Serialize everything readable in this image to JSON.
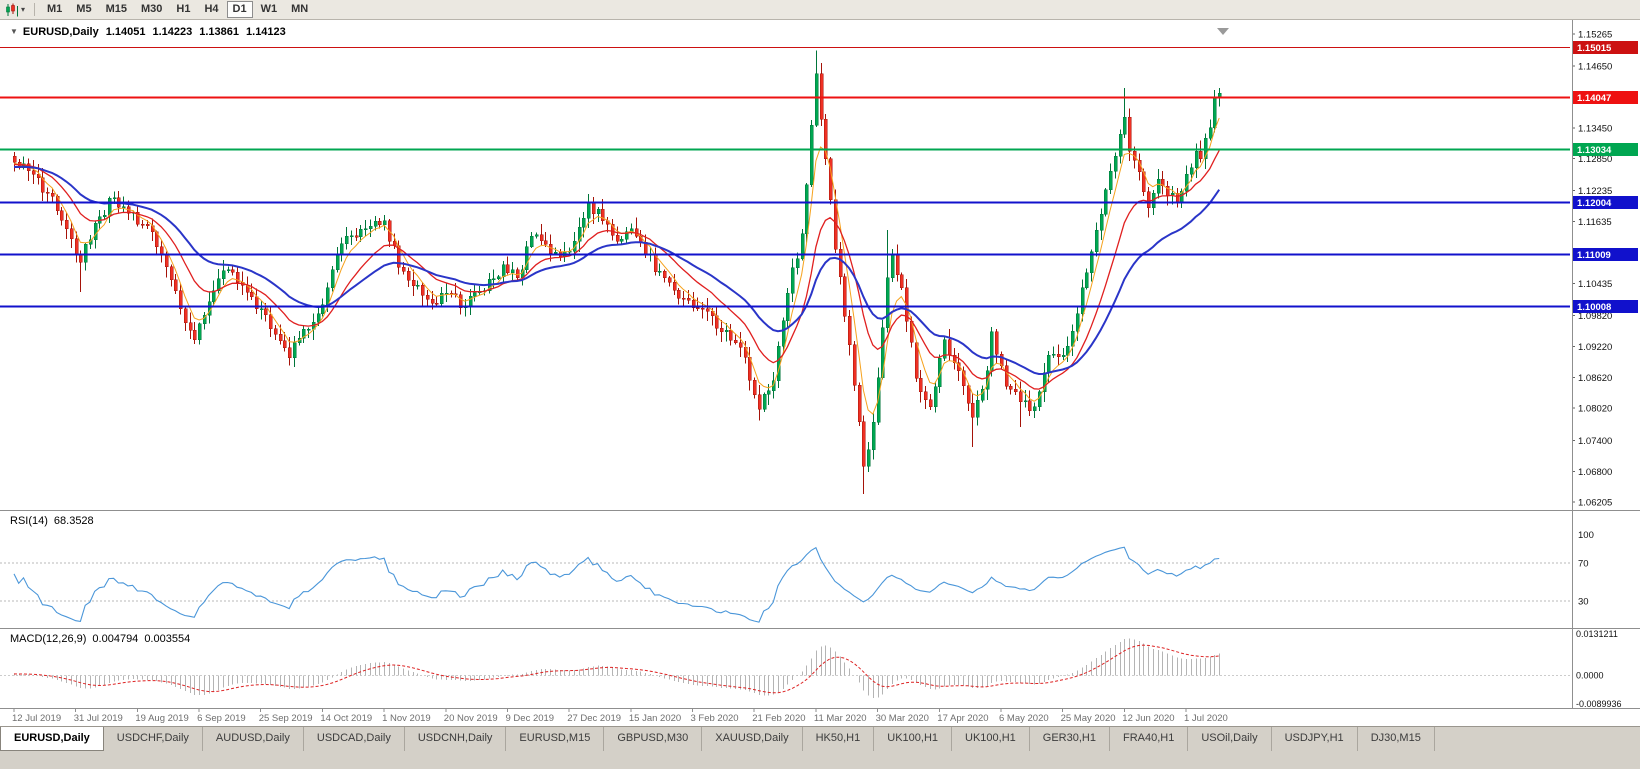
{
  "icons": {
    "header_marker": "▼",
    "toolbar_dropdown": "▾"
  },
  "toolbar": {
    "timeframes": [
      {
        "label": "M1",
        "active": false
      },
      {
        "label": "M5",
        "active": false
      },
      {
        "label": "M15",
        "active": false
      },
      {
        "label": "M30",
        "active": false
      },
      {
        "label": "H1",
        "active": false
      },
      {
        "label": "H4",
        "active": false
      },
      {
        "label": "D1",
        "active": true
      },
      {
        "label": "W1",
        "active": false
      },
      {
        "label": "MN",
        "active": false
      }
    ]
  },
  "chart": {
    "header": {
      "symbol": "EURUSD,Daily",
      "open": "1.14051",
      "high": "1.14223",
      "low": "1.13861",
      "close": "1.14123"
    },
    "y_ticks": [
      "1.15265",
      "1.14650",
      "1.13450",
      "1.12850",
      "1.12235",
      "1.11635",
      "1.10435",
      "1.09820",
      "1.09220",
      "1.08620",
      "1.08020",
      "1.07400",
      "1.06800",
      "1.06205"
    ],
    "hlines": [
      {
        "price": 1.15015,
        "label": "1.15015",
        "color": "#cc1111",
        "width": 1
      },
      {
        "price": 1.14047,
        "label": "1.14047",
        "color": "#ee1111",
        "width": 2
      },
      {
        "price": 1.13034,
        "label": "1.13034",
        "color": "#00a651",
        "width": 2
      },
      {
        "price": 1.12004,
        "label": "1.12004",
        "color": "#1111cc",
        "width": 2
      },
      {
        "price": 1.11009,
        "label": "1.11009",
        "color": "#1111cc",
        "width": 2
      },
      {
        "price": 1.10008,
        "label": "1.10008",
        "color": "#1111cc",
        "width": 2
      }
    ]
  },
  "rsi_panel": {
    "label": "RSI(14)",
    "value": "68.3528",
    "axis_labels": [
      "100",
      "70",
      "30"
    ],
    "levels": [
      70,
      30
    ]
  },
  "macd_panel": {
    "label": "MACD(12,26,9)",
    "macd_value": "0.004794",
    "signal_value": "0.003554",
    "axis_labels": [
      "0.0131211",
      "0.0000",
      "-0.0089936"
    ]
  },
  "date_axis": {
    "labels": [
      "12 Jul 2019",
      "31 Jul 2019",
      "19 Aug 2019",
      "6 Sep 2019",
      "25 Sep 2019",
      "14 Oct 2019",
      "1 Nov 2019",
      "20 Nov 2019",
      "9 Dec 2019",
      "27 Dec 2019",
      "15 Jan 2020",
      "3 Feb 2020",
      "21 Feb 2020",
      "11 Mar 2020",
      "30 Mar 2020",
      "17 Apr 2020",
      "6 May 2020",
      "25 May 2020",
      "12 Jun 2020",
      "1 Jul 2020"
    ]
  },
  "tabs": [
    {
      "label": "EURUSD,Daily",
      "active": true
    },
    {
      "label": "USDCHF,Daily",
      "active": false
    },
    {
      "label": "AUDUSD,Daily",
      "active": false
    },
    {
      "label": "USDCAD,Daily",
      "active": false
    },
    {
      "label": "USDCNH,Daily",
      "active": false
    },
    {
      "label": "EURUSD,M15",
      "active": false
    },
    {
      "label": "GBPUSD,M30",
      "active": false
    },
    {
      "label": "XAUUSD,Daily",
      "active": false
    },
    {
      "label": "HK50,H1",
      "active": false
    },
    {
      "label": "UK100,H1",
      "active": false
    },
    {
      "label": "UK100,H1",
      "active": false
    },
    {
      "label": "GER30,H1",
      "active": false
    },
    {
      "label": "FRA40,H1",
      "active": false
    },
    {
      "label": "USOil,Daily",
      "active": false
    },
    {
      "label": "USDJPY,H1",
      "active": false
    },
    {
      "label": "DJ30,M15",
      "active": false
    }
  ],
  "chart_data": {
    "type": "candlestick",
    "symbol": "EURUSD",
    "timeframe": "Daily",
    "num_candles": 255,
    "price_axis_range": [
      1.06205,
      1.15265
    ],
    "last_candle": {
      "o": 1.14051,
      "h": 1.14223,
      "l": 1.13861,
      "c": 1.14123
    },
    "close_path": [
      [
        0,
        1.1278
      ],
      [
        3,
        1.1262
      ],
      [
        7,
        1.1218
      ],
      [
        11,
        1.115
      ],
      [
        14,
        1.1085
      ],
      [
        17,
        1.116
      ],
      [
        21,
        1.121
      ],
      [
        24,
        1.118
      ],
      [
        28,
        1.1155
      ],
      [
        31,
        1.11
      ],
      [
        35,
        1.0995
      ],
      [
        38,
        1.0935
      ],
      [
        42,
        1.103
      ],
      [
        45,
        1.107
      ],
      [
        48,
        1.104
      ],
      [
        52,
        1.0995
      ],
      [
        55,
        1.0945
      ],
      [
        58,
        1.09
      ],
      [
        61,
        1.0955
      ],
      [
        64,
        1.0985
      ],
      [
        67,
        1.107
      ],
      [
        70,
        1.1135
      ],
      [
        74,
        1.115
      ],
      [
        78,
        1.1165
      ],
      [
        81,
        1.1075
      ],
      [
        85,
        1.104
      ],
      [
        88,
        1.1005
      ],
      [
        91,
        1.1025
      ],
      [
        95,
        1.1
      ],
      [
        99,
        1.103
      ],
      [
        103,
        1.108
      ],
      [
        106,
        1.1055
      ],
      [
        109,
        1.1135
      ],
      [
        112,
        1.112
      ],
      [
        115,
        1.1095
      ],
      [
        118,
        1.1125
      ],
      [
        121,
        1.12
      ],
      [
        124,
        1.1165
      ],
      [
        127,
        1.1125
      ],
      [
        130,
        1.115
      ],
      [
        133,
        1.11
      ],
      [
        137,
        1.1055
      ],
      [
        141,
        1.1015
      ],
      [
        145,
        1.0995
      ],
      [
        149,
        1.095
      ],
      [
        153,
        1.092
      ],
      [
        157,
        1.08
      ],
      [
        160,
        1.0855
      ],
      [
        163,
        1.1025
      ],
      [
        166,
        1.114
      ],
      [
        169,
        1.145
      ],
      [
        171,
        1.1285
      ],
      [
        173,
        1.111
      ],
      [
        176,
        1.0925
      ],
      [
        179,
        1.069
      ],
      [
        181,
        1.0775
      ],
      [
        184,
        1.1055
      ],
      [
        185,
        1.11
      ],
      [
        187,
        1.1035
      ],
      [
        190,
        1.086
      ],
      [
        193,
        1.0805
      ],
      [
        196,
        1.0935
      ],
      [
        199,
        1.0875
      ],
      [
        202,
        1.0785
      ],
      [
        205,
        1.0875
      ],
      [
        206,
        1.095
      ],
      [
        209,
        1.0845
      ],
      [
        212,
        1.0815
      ],
      [
        215,
        1.0805
      ],
      [
        218,
        1.0905
      ],
      [
        221,
        1.0905
      ],
      [
        224,
        1.0985
      ],
      [
        227,
        1.1105
      ],
      [
        230,
        1.1225
      ],
      [
        232,
        1.129
      ],
      [
        234,
        1.1365
      ],
      [
        235,
        1.13
      ],
      [
        237,
        1.126
      ],
      [
        239,
        1.119
      ],
      [
        241,
        1.1245
      ],
      [
        243,
        1.1215
      ],
      [
        245,
        1.12
      ],
      [
        247,
        1.1255
      ],
      [
        249,
        1.13
      ],
      [
        250,
        1.1285
      ],
      [
        251,
        1.1325
      ],
      [
        252,
        1.1345
      ],
      [
        253,
        1.1405
      ],
      [
        254,
        1.14123
      ]
    ],
    "spikes": [
      {
        "i": 0,
        "h": 1.1298
      },
      {
        "i": 14,
        "l": 1.1027
      },
      {
        "i": 38,
        "l": 1.0926
      },
      {
        "i": 58,
        "l": 1.0885
      },
      {
        "i": 157,
        "l": 1.0778
      },
      {
        "i": 169,
        "h": 1.1495
      },
      {
        "i": 179,
        "l": 1.0636
      },
      {
        "i": 184,
        "h": 1.1147
      },
      {
        "i": 202,
        "l": 1.0727
      },
      {
        "i": 212,
        "l": 1.0766
      },
      {
        "i": 234,
        "h": 1.1422
      },
      {
        "i": 253,
        "h": 1.1418
      }
    ],
    "moving_averages": [
      {
        "period": 5,
        "color": "#f6a21d",
        "width": 1
      },
      {
        "period": 14,
        "color": "#e02020",
        "width": 1.3
      },
      {
        "period": 30,
        "color": "#2a35c8",
        "width": 2
      }
    ],
    "colors": {
      "up": "#00a651",
      "up_border": "#00753a",
      "down": "#ee3024",
      "down_border": "#a51309",
      "rsi": "#4a96d9",
      "macd_hist": "#b4b4b4",
      "macd_signal": "#dd2222"
    }
  }
}
